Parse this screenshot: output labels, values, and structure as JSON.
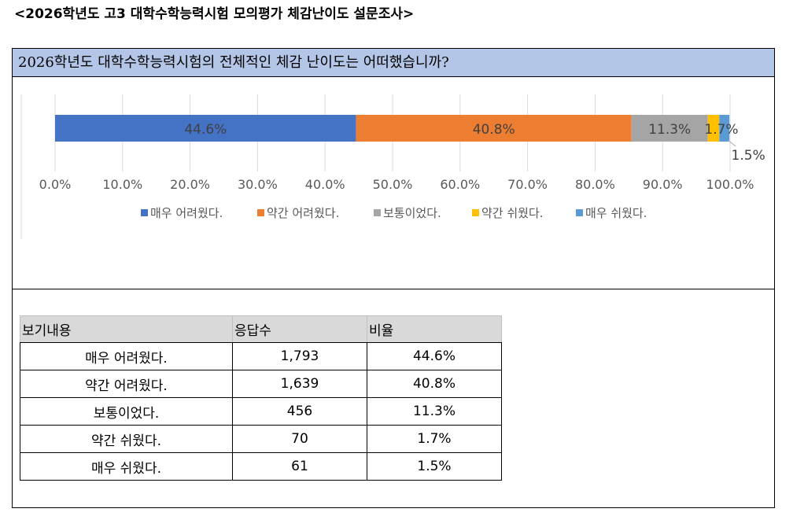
{
  "page": {
    "title": "<2026학년도 고3 대학수학능력시험 모의평가 체감난이도 설문조사>"
  },
  "question": {
    "text": "2026학년도 대학수학능력시험의 전체적인 체감 난이도는 어떠했습니까?"
  },
  "chart_data": {
    "type": "bar",
    "orientation": "horizontal",
    "stacked": "percent",
    "categories": [
      ""
    ],
    "series": [
      {
        "name": "매우 어려웠다.",
        "values": [
          44.6
        ],
        "label": "44.6%",
        "color": "#4472c4"
      },
      {
        "name": "약간 어려웠다.",
        "values": [
          40.8
        ],
        "label": "40.8%",
        "color": "#ed7d31"
      },
      {
        "name": "보통이었다.",
        "values": [
          11.3
        ],
        "label": "11.3%",
        "color": "#a5a5a5"
      },
      {
        "name": "약간 쉬웠다.",
        "values": [
          1.7
        ],
        "label": "1.7%",
        "color": "#ffc000"
      },
      {
        "name": "매우 쉬웠다.",
        "values": [
          1.5
        ],
        "label": "1.5%",
        "color": "#5b9bd5"
      }
    ],
    "xlim": [
      0,
      100
    ],
    "xticks": [
      "0.0%",
      "10.0%",
      "20.0%",
      "30.0%",
      "40.0%",
      "50.0%",
      "60.0%",
      "70.0%",
      "80.0%",
      "90.0%",
      "100.0%"
    ],
    "grid": true,
    "legend": "bottom",
    "title": "",
    "xlabel": "",
    "ylabel": ""
  },
  "table": {
    "headers": [
      "보기내용",
      "응답수",
      "비율"
    ],
    "rows": [
      [
        "매우 어려웠다.",
        "1,793",
        "44.6%"
      ],
      [
        "약간 어려웠다.",
        "1,639",
        "40.8%"
      ],
      [
        "보통이었다.",
        "456",
        "11.3%"
      ],
      [
        "약간 쉬웠다.",
        "70",
        "1.7%"
      ],
      [
        "매우 쉬웠다.",
        "61",
        "1.5%"
      ]
    ]
  }
}
